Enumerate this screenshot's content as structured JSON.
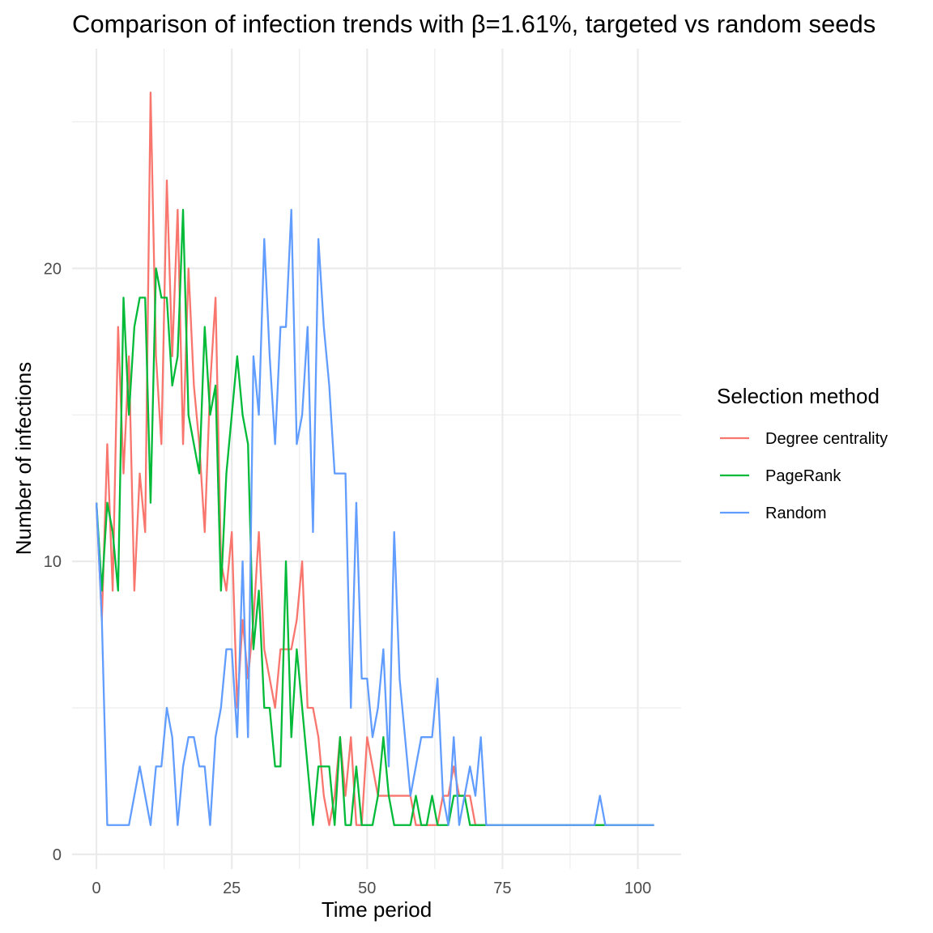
{
  "chart_data": {
    "type": "line",
    "title": "Comparison of infection trends with β=1.61%, targeted vs random seeds",
    "xlabel": "Time period",
    "ylabel": "Number of infections",
    "xlim": [
      -4.5,
      108
    ],
    "ylim": [
      -0.5,
      27.5
    ],
    "x_ticks": [
      0,
      25,
      50,
      75,
      100
    ],
    "x_tick_labels": [
      "0",
      "25",
      "50",
      "75",
      "100"
    ],
    "y_ticks": [
      0,
      10,
      20
    ],
    "y_tick_labels": [
      "0",
      "10",
      "20"
    ],
    "grid": true,
    "legend": {
      "title": "Selection method",
      "position": "right"
    },
    "series": [
      {
        "name": "Degree centrality",
        "color": "#F8766D",
        "x": [
          0,
          1,
          2,
          3,
          4,
          5,
          6,
          7,
          8,
          9,
          10,
          11,
          12,
          13,
          14,
          15,
          16,
          17,
          18,
          19,
          20,
          21,
          22,
          23,
          24,
          25,
          26,
          27,
          28,
          29,
          30,
          31,
          32,
          33,
          34,
          35,
          36,
          37,
          38,
          39,
          40,
          41,
          42,
          43,
          44,
          45,
          46,
          47,
          48,
          49,
          50,
          51,
          52,
          53,
          54,
          55,
          56,
          57,
          58,
          59,
          60,
          61,
          62,
          63,
          64,
          65,
          66,
          67,
          68,
          69,
          70,
          71,
          72,
          73,
          74,
          75,
          76,
          77,
          78,
          79,
          80,
          81,
          82,
          83,
          84,
          85,
          86,
          87,
          88,
          89,
          90,
          91,
          92,
          93,
          94,
          95,
          96,
          97,
          98,
          99,
          100,
          101,
          102,
          103
        ],
        "values": [
          12,
          8,
          14,
          9,
          18,
          13,
          17,
          9,
          13,
          11,
          26,
          17,
          14,
          23,
          17,
          22,
          14,
          20,
          16,
          14,
          11,
          16,
          19,
          10,
          9,
          11,
          5,
          8,
          6,
          8,
          11,
          7,
          6,
          5,
          7,
          7,
          7,
          8,
          10,
          5,
          5,
          4,
          2,
          1,
          2,
          4,
          2,
          4,
          1,
          1,
          4,
          3,
          2,
          2,
          2,
          2,
          2,
          2,
          2,
          1,
          1,
          1,
          1,
          1,
          2,
          2,
          3,
          2,
          2,
          2,
          1,
          1,
          1,
          1,
          1,
          1,
          1,
          1,
          1,
          1,
          1,
          1,
          1,
          1,
          1,
          1,
          1,
          1,
          1,
          1,
          1,
          1,
          1,
          1,
          1,
          1,
          1,
          1,
          1,
          1,
          1,
          1,
          1,
          1
        ]
      },
      {
        "name": "PageRank",
        "color": "#00BA38",
        "x": [
          0,
          1,
          2,
          3,
          4,
          5,
          6,
          7,
          8,
          9,
          10,
          11,
          12,
          13,
          14,
          15,
          16,
          17,
          18,
          19,
          20,
          21,
          22,
          23,
          24,
          25,
          26,
          27,
          28,
          29,
          30,
          31,
          32,
          33,
          34,
          35,
          36,
          37,
          38,
          39,
          40,
          41,
          42,
          43,
          44,
          45,
          46,
          47,
          48,
          49,
          50,
          51,
          52,
          53,
          54,
          55,
          56,
          57,
          58,
          59,
          60,
          61,
          62,
          63,
          64,
          65,
          66,
          67,
          68,
          69,
          70,
          71,
          72,
          73,
          74,
          75,
          76,
          77,
          78,
          79,
          80,
          81,
          82,
          83,
          84,
          85,
          86,
          87,
          88,
          89,
          90,
          91,
          92,
          93,
          94,
          95,
          96,
          97,
          98,
          99,
          100,
          101,
          102,
          103
        ],
        "values": [
          12,
          9,
          12,
          11,
          9,
          19,
          15,
          18,
          19,
          19,
          12,
          20,
          19,
          19,
          16,
          17,
          22,
          15,
          14,
          13,
          18,
          15,
          16,
          9,
          13,
          15,
          17,
          15,
          14,
          7,
          9,
          5,
          5,
          3,
          3,
          10,
          4,
          7,
          5,
          3,
          1,
          3,
          3,
          3,
          1,
          4,
          1,
          1,
          3,
          1,
          1,
          1,
          2,
          4,
          2,
          1,
          1,
          1,
          1,
          2,
          1,
          1,
          2,
          1,
          1,
          1,
          2,
          2,
          2,
          1,
          1,
          1,
          1,
          1,
          1,
          1,
          1,
          1,
          1,
          1,
          1,
          1,
          1,
          1,
          1,
          1,
          1,
          1,
          1,
          1,
          1,
          1,
          1,
          1,
          1,
          1,
          1,
          1,
          1,
          1,
          1,
          1,
          1,
          1
        ]
      },
      {
        "name": "Random",
        "color": "#619CFF",
        "x": [
          0,
          1,
          2,
          3,
          4,
          5,
          6,
          7,
          8,
          9,
          10,
          11,
          12,
          13,
          14,
          15,
          16,
          17,
          18,
          19,
          20,
          21,
          22,
          23,
          24,
          25,
          26,
          27,
          28,
          29,
          30,
          31,
          32,
          33,
          34,
          35,
          36,
          37,
          38,
          39,
          40,
          41,
          42,
          43,
          44,
          45,
          46,
          47,
          48,
          49,
          50,
          51,
          52,
          53,
          54,
          55,
          56,
          57,
          58,
          59,
          60,
          61,
          62,
          63,
          64,
          65,
          66,
          67,
          68,
          69,
          70,
          71,
          72,
          73,
          74,
          75,
          76,
          77,
          78,
          79,
          80,
          81,
          82,
          83,
          84,
          85,
          86,
          87,
          88,
          89,
          90,
          91,
          92,
          93,
          94,
          95,
          96,
          97,
          98,
          99,
          100,
          101,
          102,
          103
        ],
        "values": [
          12,
          8,
          1,
          1,
          1,
          1,
          1,
          2,
          3,
          2,
          1,
          3,
          3,
          5,
          4,
          1,
          3,
          4,
          4,
          3,
          3,
          1,
          4,
          5,
          7,
          7,
          4,
          10,
          4,
          17,
          15,
          21,
          17,
          14,
          18,
          18,
          22,
          14,
          15,
          18,
          11,
          21,
          18,
          16,
          13,
          13,
          13,
          5,
          12,
          6,
          6,
          4,
          5,
          7,
          3,
          11,
          6,
          4,
          2,
          3,
          4,
          4,
          4,
          6,
          2,
          1,
          4,
          1,
          2,
          3,
          2,
          4,
          1,
          1,
          1,
          1,
          1,
          1,
          1,
          1,
          1,
          1,
          1,
          1,
          1,
          1,
          1,
          1,
          1,
          1,
          1,
          1,
          1,
          2,
          1,
          1,
          1,
          1,
          1,
          1,
          1,
          1,
          1,
          1
        ]
      }
    ]
  }
}
